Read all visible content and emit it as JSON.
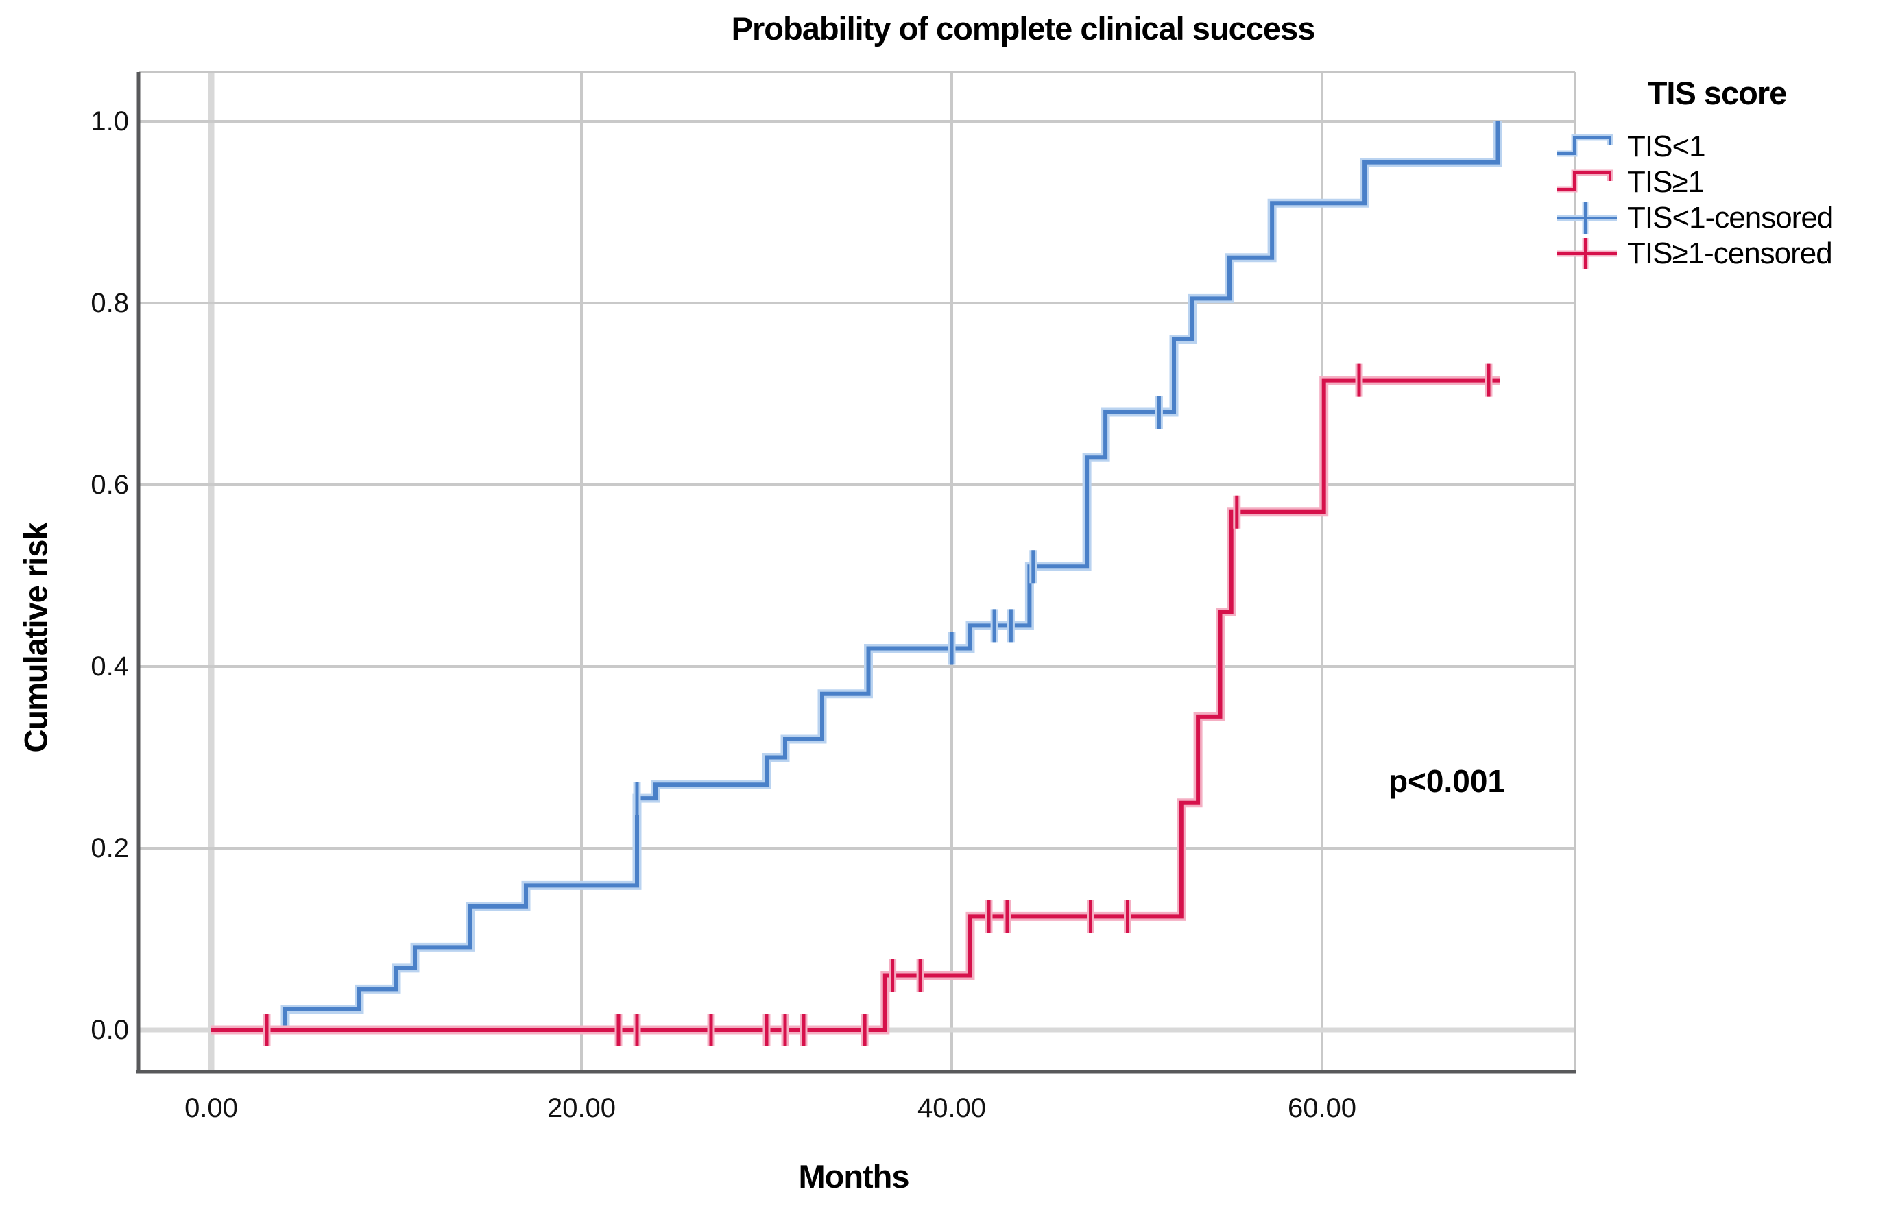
{
  "chart_data": {
    "type": "line",
    "subtype": "kaplan-meier-step-cumulative-incidence",
    "title": "Probability of complete clinical success",
    "xlabel": "Months",
    "ylabel": "Cumulative risk",
    "xlim": [
      -4,
      74
    ],
    "ylim": [
      -0.046,
      1.055
    ],
    "grid": "on",
    "x_ticks": {
      "labels": [
        "0.00",
        "20.00",
        "40.00",
        "60.00"
      ],
      "values": [
        0,
        20,
        40,
        60
      ]
    },
    "y_ticks": {
      "labels": [
        "0.0",
        "0.2",
        "0.4",
        "0.6",
        "0.8",
        "1.0"
      ],
      "values": [
        0,
        0.2,
        0.4,
        0.6,
        0.8,
        1.0
      ]
    },
    "annotation": {
      "text": "p<0.001",
      "x_month": 66.7,
      "y_value": 0.27
    },
    "colors": {
      "tis_lt1": "#4a80c8",
      "tis_lt1_halo": "#bad3f0",
      "tis_ge1": "#d6114b",
      "tis_ge1_halo": "#f4afc3",
      "grid": "#c9c9c9",
      "grid_zero": "#d8d8d8",
      "axis_dark": "#58595b",
      "frame_light": "#c6c6c6"
    },
    "legend": {
      "title": "TIS score",
      "position": "right-top",
      "items": [
        {
          "label": "TIS<1",
          "type": "step",
          "series": 0
        },
        {
          "label": "TIS≥1",
          "type": "step",
          "series": 1
        },
        {
          "label": "TIS<1-censored",
          "type": "censor",
          "series": 0
        },
        {
          "label": "TIS≥1-censored",
          "type": "censor",
          "series": 1
        }
      ]
    },
    "series": [
      {
        "name": "TIS<1",
        "start_month": 0,
        "end_month": 69.5,
        "steps": [
          [
            4,
            0.023
          ],
          [
            8,
            0.045
          ],
          [
            10,
            0.068
          ],
          [
            11,
            0.091
          ],
          [
            14,
            0.136
          ],
          [
            17,
            0.159
          ],
          [
            23,
            0.255
          ],
          [
            24,
            0.27
          ],
          [
            30,
            0.3
          ],
          [
            31,
            0.32
          ],
          [
            33,
            0.37
          ],
          [
            35.5,
            0.42
          ],
          [
            41,
            0.445
          ],
          [
            44.2,
            0.51
          ],
          [
            47.3,
            0.63
          ],
          [
            48.3,
            0.68
          ],
          [
            52,
            0.76
          ],
          [
            53,
            0.805
          ],
          [
            55,
            0.85
          ],
          [
            57.3,
            0.91
          ],
          [
            62.3,
            0.955
          ],
          [
            69.5,
            1.0
          ]
        ],
        "censored": [
          [
            23,
            0.255
          ],
          [
            40,
            0.42
          ],
          [
            42.3,
            0.445
          ],
          [
            43.2,
            0.445
          ],
          [
            44.4,
            0.51
          ],
          [
            51.2,
            0.68
          ]
        ]
      },
      {
        "name": "TIS≥1",
        "start_month": 0,
        "end_month": 69.6,
        "steps": [
          [
            36.4,
            0.06
          ],
          [
            41,
            0.125
          ],
          [
            52.4,
            0.25
          ],
          [
            53.3,
            0.345
          ],
          [
            54.5,
            0.46
          ],
          [
            55.1,
            0.57
          ],
          [
            60.1,
            0.715
          ]
        ],
        "censored": [
          [
            3,
            0
          ],
          [
            22,
            0
          ],
          [
            23,
            0
          ],
          [
            27,
            0
          ],
          [
            30,
            0
          ],
          [
            31,
            0
          ],
          [
            32,
            0
          ],
          [
            35.3,
            0
          ],
          [
            36.8,
            0.06
          ],
          [
            38.3,
            0.06
          ],
          [
            42,
            0.125
          ],
          [
            43,
            0.125
          ],
          [
            47.5,
            0.125
          ],
          [
            49.5,
            0.125
          ],
          [
            55.4,
            0.57
          ],
          [
            62,
            0.715
          ],
          [
            69,
            0.715
          ]
        ]
      }
    ]
  }
}
